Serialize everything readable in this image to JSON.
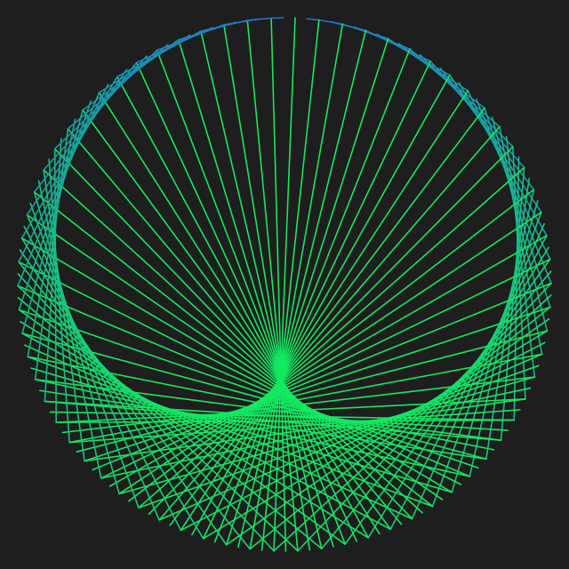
{
  "artwork": {
    "subject": "string-art-cardioid",
    "line_count": 140,
    "multiplier": 2,
    "colors": {
      "background": "#1e1e1e",
      "gradient_start": "#1f6fd0",
      "gradient_end": "#12e860"
    }
  }
}
